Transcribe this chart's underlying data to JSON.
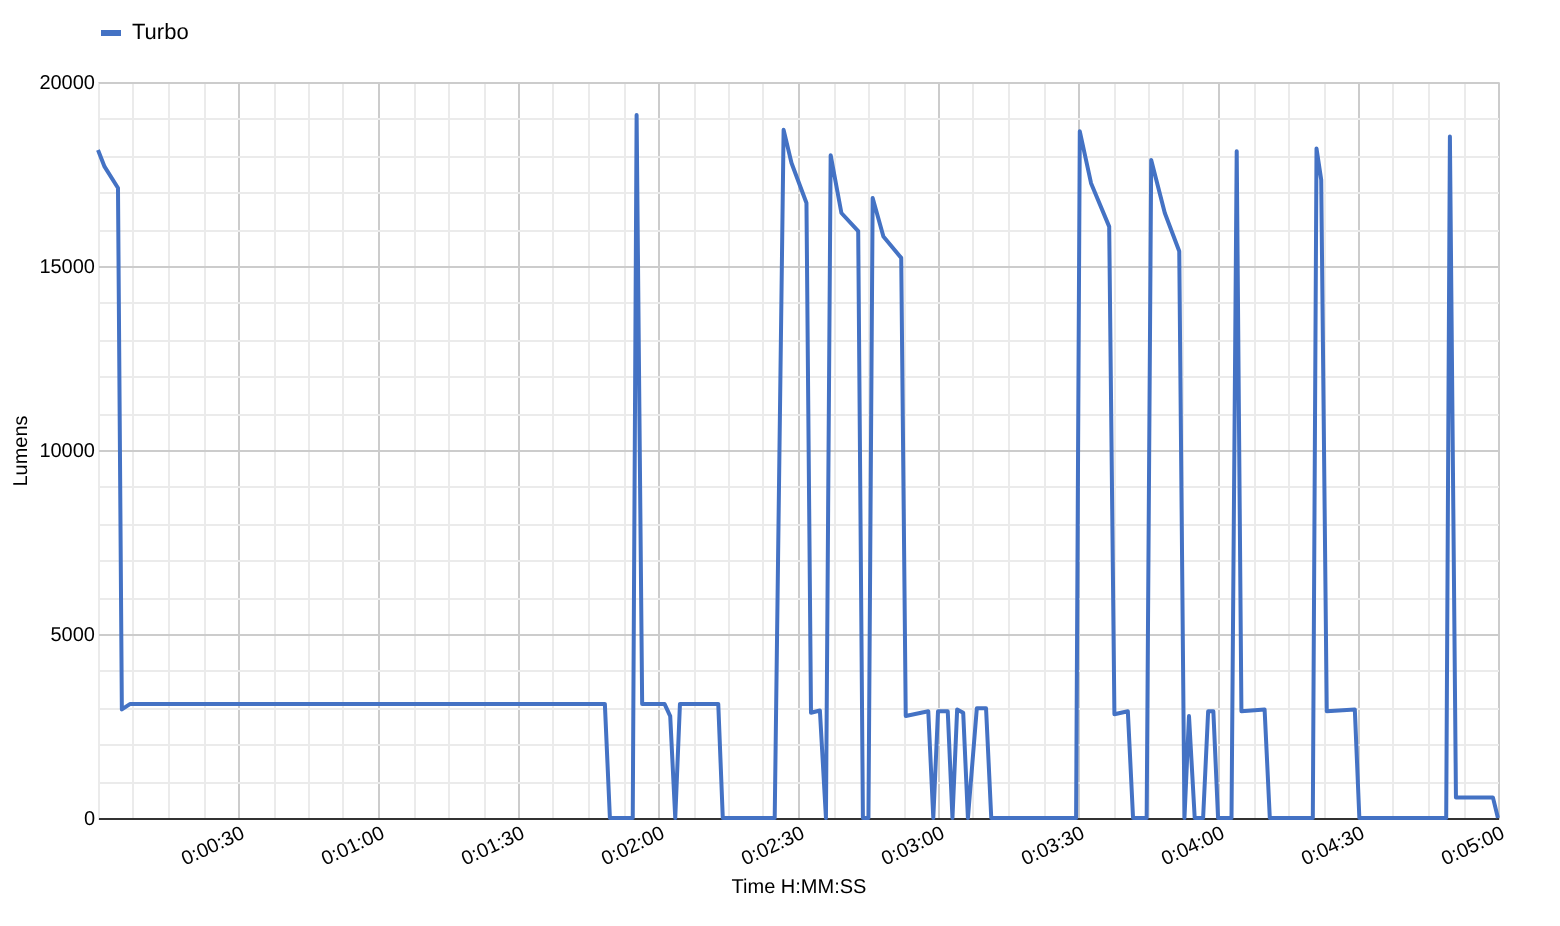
{
  "chart_data": {
    "type": "line",
    "xlabel": "Time H:MM:SS",
    "ylabel": "Lumens",
    "x": [
      0,
      0.00039,
      0.00119,
      0.00142,
      0.00192,
      0.03017,
      0.03047,
      0.03183,
      0.03206,
      0.03239,
      0.03372,
      0.03406,
      0.03436,
      0.03464,
      0.03692,
      0.03719,
      0.04028,
      0.04081,
      0.04128,
      0.04217,
      0.04244,
      0.04297,
      0.04333,
      0.04361,
      0.04425,
      0.04525,
      0.04553,
      0.04586,
      0.04611,
      0.04675,
      0.04781,
      0.04808,
      0.04942,
      0.04972,
      0.05,
      0.05058,
      0.05086,
      0.05114,
      0.0515,
      0.05178,
      0.05231,
      0.05286,
      0.05317,
      0.05822,
      0.05844,
      0.05911,
      0.06019,
      0.0605,
      0.0613,
      0.06161,
      0.06242,
      0.06269,
      0.0635,
      0.06436,
      0.06467,
      0.06494,
      0.06528,
      0.06578,
      0.06608,
      0.06639,
      0.06667,
      0.06747,
      0.06778,
      0.06806,
      0.06944,
      0.06975,
      0.07231,
      0.07253,
      0.07281,
      0.07314,
      0.07481,
      0.07508,
      0.08025,
      0.08047,
      0.08083,
      0.08303,
      0.08333
    ],
    "series": [
      {
        "name": "Turbo",
        "color": "#4472c4",
        "values": [
          18150,
          17700,
          17120,
          2950,
          3100,
          3100,
          0,
          0,
          19100,
          3100,
          3100,
          2770,
          0,
          3100,
          3100,
          0,
          0,
          18700,
          17800,
          16710,
          2860,
          2920,
          0,
          18010,
          16440,
          15950,
          0,
          0,
          16850,
          15800,
          15220,
          2770,
          2900,
          0,
          2900,
          2900,
          0,
          2950,
          2860,
          0,
          2980,
          2980,
          0,
          0,
          18660,
          17250,
          16070,
          2820,
          2900,
          0,
          0,
          17880,
          16440,
          15400,
          0,
          2770,
          0,
          0,
          2900,
          2900,
          0,
          0,
          18120,
          2900,
          2950,
          0,
          0,
          18190,
          17340,
          2900,
          2950,
          0,
          0,
          18520,
          560,
          560,
          0
        ]
      }
    ],
    "xlim": [
      0,
      0.083333
    ],
    "xticks": [
      {
        "value": 0,
        "label": null
      },
      {
        "value": 0.002083,
        "label": null
      },
      {
        "value": 0.004167,
        "label": null
      },
      {
        "value": 0.00625,
        "label": null
      },
      {
        "value": 0.008333,
        "label": "0:00:30"
      },
      {
        "value": 0.010417,
        "label": null
      },
      {
        "value": 0.0125,
        "label": null
      },
      {
        "value": 0.014583,
        "label": null
      },
      {
        "value": 0.016667,
        "label": "0:01:00"
      },
      {
        "value": 0.01875,
        "label": null
      },
      {
        "value": 0.020833,
        "label": null
      },
      {
        "value": 0.022917,
        "label": null
      },
      {
        "value": 0.025,
        "label": "0:01:30"
      },
      {
        "value": 0.027083,
        "label": null
      },
      {
        "value": 0.029167,
        "label": null
      },
      {
        "value": 0.03125,
        "label": null
      },
      {
        "value": 0.033333,
        "label": "0:02:00"
      },
      {
        "value": 0.035417,
        "label": null
      },
      {
        "value": 0.0375,
        "label": null
      },
      {
        "value": 0.039583,
        "label": null
      },
      {
        "value": 0.041667,
        "label": "0:02:30"
      },
      {
        "value": 0.04375,
        "label": null
      },
      {
        "value": 0.045833,
        "label": null
      },
      {
        "value": 0.047917,
        "label": null
      },
      {
        "value": 0.05,
        "label": "0:03:00"
      },
      {
        "value": 0.052083,
        "label": null
      },
      {
        "value": 0.054167,
        "label": null
      },
      {
        "value": 0.05625,
        "label": null
      },
      {
        "value": 0.058333,
        "label": "0:03:30"
      },
      {
        "value": 0.060417,
        "label": null
      },
      {
        "value": 0.0625,
        "label": null
      },
      {
        "value": 0.064583,
        "label": null
      },
      {
        "value": 0.066667,
        "label": "0:04:00"
      },
      {
        "value": 0.06875,
        "label": null
      },
      {
        "value": 0.070833,
        "label": null
      },
      {
        "value": 0.072917,
        "label": null
      },
      {
        "value": 0.075,
        "label": "0:04:30"
      },
      {
        "value": 0.077083,
        "label": null
      },
      {
        "value": 0.079167,
        "label": null
      },
      {
        "value": 0.08125,
        "label": null
      },
      {
        "value": 0.083333,
        "label": "0:05:00"
      }
    ],
    "ylim": [
      0,
      20000
    ],
    "yticks": [
      0,
      {
        "value": 1000,
        "label": null
      },
      {
        "value": 2000,
        "label": null
      },
      {
        "value": 3000,
        "label": null
      },
      {
        "value": 4000,
        "label": null
      },
      5000,
      {
        "value": 6000,
        "label": null
      },
      {
        "value": 7000,
        "label": null
      },
      {
        "value": 8000,
        "label": null
      },
      {
        "value": 9000,
        "label": null
      },
      10000,
      {
        "value": 11000,
        "label": null
      },
      {
        "value": 12000,
        "label": null
      },
      {
        "value": 13000,
        "label": null
      },
      {
        "value": 14000,
        "label": null
      },
      15000,
      {
        "value": 16000,
        "label": null
      },
      {
        "value": 17000,
        "label": null
      },
      {
        "value": 18000,
        "label": null
      },
      {
        "value": 19000,
        "label": null
      },
      20000
    ],
    "grid": true,
    "legend": "top",
    "marker": "none",
    "line_style": "solid"
  }
}
